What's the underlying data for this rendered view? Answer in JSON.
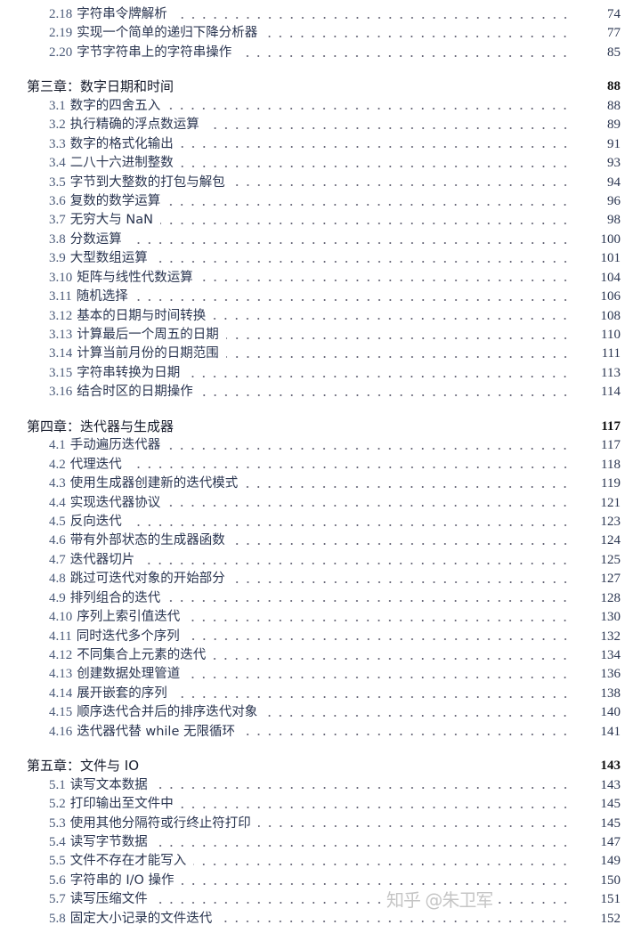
{
  "entries": [
    {
      "type": "sec",
      "num": "2.18",
      "title": "字符串令牌解析",
      "page": "74"
    },
    {
      "type": "sec",
      "num": "2.19",
      "title": "实现一个简单的递归下降分析器",
      "page": "77"
    },
    {
      "type": "sec",
      "num": "2.20",
      "title": "字节字符串上的字符串操作",
      "page": "85"
    },
    {
      "type": "chap",
      "title": "第三章：数字日期和时间",
      "page": "88"
    },
    {
      "type": "sec",
      "num": "3.1",
      "title": "数字的四舍五入",
      "page": "88"
    },
    {
      "type": "sec",
      "num": "3.2",
      "title": "执行精确的浮点数运算",
      "page": "89"
    },
    {
      "type": "sec",
      "num": "3.3",
      "title": "数字的格式化输出",
      "page": "91"
    },
    {
      "type": "sec",
      "num": "3.4",
      "title": "二八十六进制整数",
      "page": "93"
    },
    {
      "type": "sec",
      "num": "3.5",
      "title": "字节到大整数的打包与解包",
      "page": "94"
    },
    {
      "type": "sec",
      "num": "3.6",
      "title": "复数的数学运算",
      "page": "96"
    },
    {
      "type": "sec",
      "num": "3.7",
      "title": "无穷大与 NaN",
      "page": "98"
    },
    {
      "type": "sec",
      "num": "3.8",
      "title": "分数运算",
      "page": "100"
    },
    {
      "type": "sec",
      "num": "3.9",
      "title": "大型数组运算",
      "page": "101"
    },
    {
      "type": "sec",
      "num": "3.10",
      "title": "矩阵与线性代数运算",
      "page": "104"
    },
    {
      "type": "sec",
      "num": "3.11",
      "title": "随机选择",
      "page": "106"
    },
    {
      "type": "sec",
      "num": "3.12",
      "title": "基本的日期与时间转换",
      "page": "108"
    },
    {
      "type": "sec",
      "num": "3.13",
      "title": "计算最后一个周五的日期",
      "page": "110"
    },
    {
      "type": "sec",
      "num": "3.14",
      "title": "计算当前月份的日期范围",
      "page": "111"
    },
    {
      "type": "sec",
      "num": "3.15",
      "title": "字符串转换为日期",
      "page": "113"
    },
    {
      "type": "sec",
      "num": "3.16",
      "title": "结合时区的日期操作",
      "page": "114"
    },
    {
      "type": "chap",
      "title": "第四章：迭代器与生成器",
      "page": "117"
    },
    {
      "type": "sec",
      "num": "4.1",
      "title": "手动遍历迭代器",
      "page": "117"
    },
    {
      "type": "sec",
      "num": "4.2",
      "title": "代理迭代",
      "page": "118"
    },
    {
      "type": "sec",
      "num": "4.3",
      "title": "使用生成器创建新的迭代模式",
      "page": "119"
    },
    {
      "type": "sec",
      "num": "4.4",
      "title": "实现迭代器协议",
      "page": "121"
    },
    {
      "type": "sec",
      "num": "4.5",
      "title": "反向迭代",
      "page": "123"
    },
    {
      "type": "sec",
      "num": "4.6",
      "title": "带有外部状态的生成器函数",
      "page": "124"
    },
    {
      "type": "sec",
      "num": "4.7",
      "title": "迭代器切片",
      "page": "125"
    },
    {
      "type": "sec",
      "num": "4.8",
      "title": "跳过可迭代对象的开始部分",
      "page": "127"
    },
    {
      "type": "sec",
      "num": "4.9",
      "title": "排列组合的迭代",
      "page": "128"
    },
    {
      "type": "sec",
      "num": "4.10",
      "title": "序列上索引值迭代",
      "page": "130"
    },
    {
      "type": "sec",
      "num": "4.11",
      "title": "同时迭代多个序列",
      "page": "132"
    },
    {
      "type": "sec",
      "num": "4.12",
      "title": "不同集合上元素的迭代",
      "page": "134"
    },
    {
      "type": "sec",
      "num": "4.13",
      "title": "创建数据处理管道",
      "page": "136"
    },
    {
      "type": "sec",
      "num": "4.14",
      "title": "展开嵌套的序列",
      "page": "138"
    },
    {
      "type": "sec",
      "num": "4.15",
      "title": "顺序迭代合并后的排序迭代对象",
      "page": "140"
    },
    {
      "type": "sec",
      "num": "4.16",
      "title": "迭代器代替 while 无限循环",
      "page": "141"
    },
    {
      "type": "chap",
      "title": "第五章：文件与 IO",
      "page": "143"
    },
    {
      "type": "sec",
      "num": "5.1",
      "title": "读写文本数据",
      "page": "143"
    },
    {
      "type": "sec",
      "num": "5.2",
      "title": "打印输出至文件中",
      "page": "145"
    },
    {
      "type": "sec",
      "num": "5.3",
      "title": "使用其他分隔符或行终止符打印",
      "page": "145"
    },
    {
      "type": "sec",
      "num": "5.4",
      "title": "读写字节数据",
      "page": "147"
    },
    {
      "type": "sec",
      "num": "5.5",
      "title": "文件不存在才能写入",
      "page": "149"
    },
    {
      "type": "sec",
      "num": "5.6",
      "title": "字符串的 I/O 操作",
      "page": "150"
    },
    {
      "type": "sec",
      "num": "5.7",
      "title": "读写压缩文件",
      "page": "151"
    },
    {
      "type": "sec",
      "num": "5.8",
      "title": "固定大小记录的文件迭代",
      "page": "152"
    }
  ],
  "watermark": "知乎 @朱卫军"
}
